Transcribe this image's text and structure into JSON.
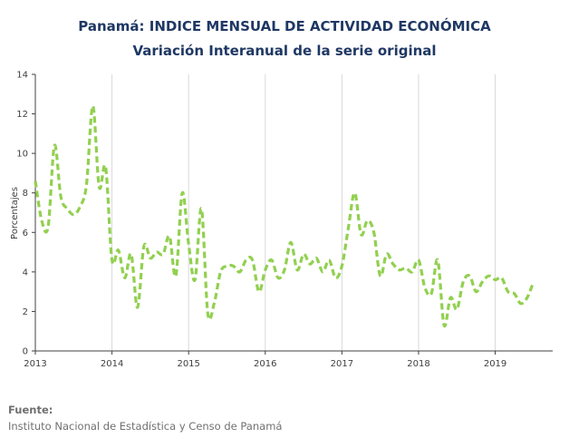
{
  "title": "Panamá: INDICE MENSUAL DE ACTIVIDAD ECONÓMICA",
  "subtitle": "Variación Interanual de la serie original",
  "source_label": "Fuente:",
  "source_text": "Instituto Nacional de Estadística y Censo de Panamá",
  "colors": {
    "line": "#92d050",
    "title": "#1f3864",
    "axis": "#404040",
    "grid": "#d9d9d9"
  },
  "chart_data": {
    "type": "line",
    "title": "Panamá: INDICE MENSUAL DE ACTIVIDAD ECONÓMICA",
    "subtitle": "Variación Interanual de la serie original",
    "xlabel": "",
    "ylabel": "Porcentajes",
    "xlim": [
      2013,
      2019.75
    ],
    "ylim": [
      0,
      14
    ],
    "yticks": [
      0,
      2,
      4,
      6,
      8,
      10,
      12,
      14
    ],
    "xticks": [
      "2013",
      "2014",
      "2015",
      "2016",
      "2017",
      "2018",
      "2019"
    ],
    "line_style": "dashed",
    "grid": "vertical-only",
    "legend": "none",
    "series": [
      {
        "x": [
          2013.0,
          2013.083,
          2013.167,
          2013.25,
          2013.333,
          2013.417,
          2013.5,
          2013.583,
          2013.667,
          2013.75,
          2013.833,
          2013.917,
          2014.0,
          2014.083,
          2014.167,
          2014.25,
          2014.333,
          2014.417,
          2014.5,
          2014.583,
          2014.667,
          2014.75,
          2014.833,
          2014.917,
          2015.0,
          2015.083,
          2015.167,
          2015.25,
          2015.333,
          2015.417,
          2015.5,
          2015.583,
          2015.667,
          2015.75,
          2015.833,
          2015.917,
          2016.0,
          2016.083,
          2016.167,
          2016.25,
          2016.333,
          2016.417,
          2016.5,
          2016.583,
          2016.667,
          2016.75,
          2016.833,
          2016.917,
          2017.0,
          2017.083,
          2017.167,
          2017.25,
          2017.333,
          2017.417,
          2017.5,
          2017.583,
          2017.667,
          2017.75,
          2017.833,
          2017.917,
          2018.0,
          2018.083,
          2018.167,
          2018.25,
          2018.333,
          2018.417,
          2018.5,
          2018.583,
          2018.667,
          2018.75,
          2018.833,
          2018.917,
          2019.0,
          2019.083,
          2019.167,
          2019.25,
          2019.333,
          2019.417,
          2019.5
        ],
        "values": [
          8.6,
          6.6,
          6.3,
          10.4,
          7.8,
          7.2,
          6.9,
          7.3,
          8.4,
          12.4,
          8.3,
          9.3,
          4.6,
          5.1,
          3.7,
          4.9,
          2.2,
          5.3,
          4.7,
          5.0,
          4.9,
          5.8,
          3.8,
          8.0,
          5.4,
          3.6,
          7.2,
          1.9,
          2.4,
          4.0,
          4.3,
          4.3,
          4.0,
          4.6,
          4.6,
          3.0,
          4.1,
          4.6,
          3.7,
          4.1,
          5.5,
          4.1,
          4.9,
          4.4,
          4.7,
          4.0,
          4.6,
          3.7,
          4.3,
          6.2,
          8.0,
          5.9,
          6.6,
          6.0,
          3.8,
          4.9,
          4.4,
          4.1,
          4.2,
          4.0,
          4.6,
          3.2,
          2.9,
          4.6,
          1.3,
          2.7,
          2.1,
          3.5,
          3.8,
          3.0,
          3.5,
          3.8,
          3.6,
          3.7,
          3.0,
          2.9,
          2.4,
          2.7,
          3.5
        ]
      }
    ]
  }
}
